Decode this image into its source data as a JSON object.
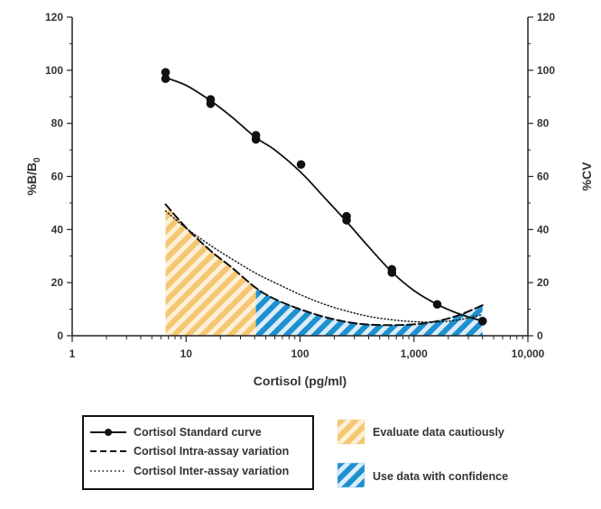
{
  "chart_data": {
    "type": "line",
    "xlabel": "Cortisol (pg/ml)",
    "x_scale": "log",
    "xlim": [
      1,
      10000
    ],
    "x_ticks": [
      1,
      10,
      100,
      1000,
      10000
    ],
    "x_tick_labels": [
      "1",
      "10",
      "100",
      "1,000",
      "10,000"
    ],
    "ylabel_left": "%B/B",
    "ylabel_left_subscript": "0",
    "ylim_left": [
      0,
      120
    ],
    "y_ticks_left": [
      "0",
      "20",
      "40",
      "60",
      "80",
      "100",
      "120"
    ],
    "ylabel_right": "%CV",
    "ylim_right": [
      0,
      120
    ],
    "y_ticks_right": [
      "0",
      "20",
      "40",
      "60",
      "80",
      "100",
      "120"
    ],
    "legend_position": "bottom",
    "series": [
      {
        "name": "Cortisol Standard curve",
        "axis": "left",
        "style": "solid-with-points",
        "color": "#111111",
        "points": [
          [
            6.6,
            99.2
          ],
          [
            6.6,
            96.8
          ],
          [
            16.4,
            89.0
          ],
          [
            16.4,
            87.4
          ],
          [
            41,
            75.5
          ],
          [
            41,
            74.0
          ],
          [
            102,
            64.5
          ],
          [
            256,
            45.0
          ],
          [
            256,
            43.5
          ],
          [
            640,
            25.0
          ],
          [
            640,
            23.8
          ],
          [
            1600,
            11.8
          ],
          [
            4000,
            5.5
          ]
        ],
        "curve": [
          [
            6.6,
            97.2
          ],
          [
            10,
            94.3
          ],
          [
            16.4,
            88.5
          ],
          [
            25,
            82.5
          ],
          [
            41,
            74.6
          ],
          [
            60,
            70.0
          ],
          [
            102,
            61.5
          ],
          [
            160,
            52.5
          ],
          [
            256,
            43.0
          ],
          [
            400,
            33.5
          ],
          [
            640,
            24.0
          ],
          [
            1000,
            17.0
          ],
          [
            1600,
            11.8
          ],
          [
            2500,
            8.2
          ],
          [
            4000,
            5.5
          ]
        ]
      },
      {
        "name": "Cortisol Intra-assay variation",
        "axis": "right",
        "style": "dashed",
        "color": "#111111",
        "curve": [
          [
            6.6,
            49.5
          ],
          [
            10,
            40.7
          ],
          [
            16.4,
            32.0
          ],
          [
            25,
            25.8
          ],
          [
            41,
            18.0
          ],
          [
            60,
            13.8
          ],
          [
            100,
            10.0
          ],
          [
            160,
            7.2
          ],
          [
            256,
            5.2
          ],
          [
            400,
            4.2
          ],
          [
            640,
            4.0
          ],
          [
            1000,
            4.3
          ],
          [
            1600,
            5.5
          ],
          [
            2500,
            7.8
          ],
          [
            4000,
            11.5
          ]
        ]
      },
      {
        "name": "Cortisol Inter-assay variation",
        "axis": "right",
        "style": "dotted",
        "color": "#111111",
        "curve": [
          [
            6.6,
            47.0
          ],
          [
            10,
            40.5
          ],
          [
            16.4,
            34.0
          ],
          [
            25,
            29.0
          ],
          [
            41,
            23.5
          ],
          [
            60,
            20.0
          ],
          [
            100,
            15.5
          ],
          [
            160,
            12.0
          ],
          [
            256,
            9.3
          ],
          [
            400,
            7.3
          ],
          [
            640,
            6.0
          ],
          [
            1000,
            5.3
          ],
          [
            1600,
            5.2
          ],
          [
            2500,
            6.0
          ],
          [
            4000,
            8.0
          ]
        ]
      }
    ],
    "regions": [
      {
        "name": "Evaluate data cautiously",
        "x_range": [
          6.6,
          41
        ],
        "color": "#f6c772",
        "pattern": "hatched"
      },
      {
        "name": "Use data with confidence",
        "x_range": [
          41,
          4000
        ],
        "color": "#1e90d0",
        "pattern": "hatched"
      }
    ]
  }
}
